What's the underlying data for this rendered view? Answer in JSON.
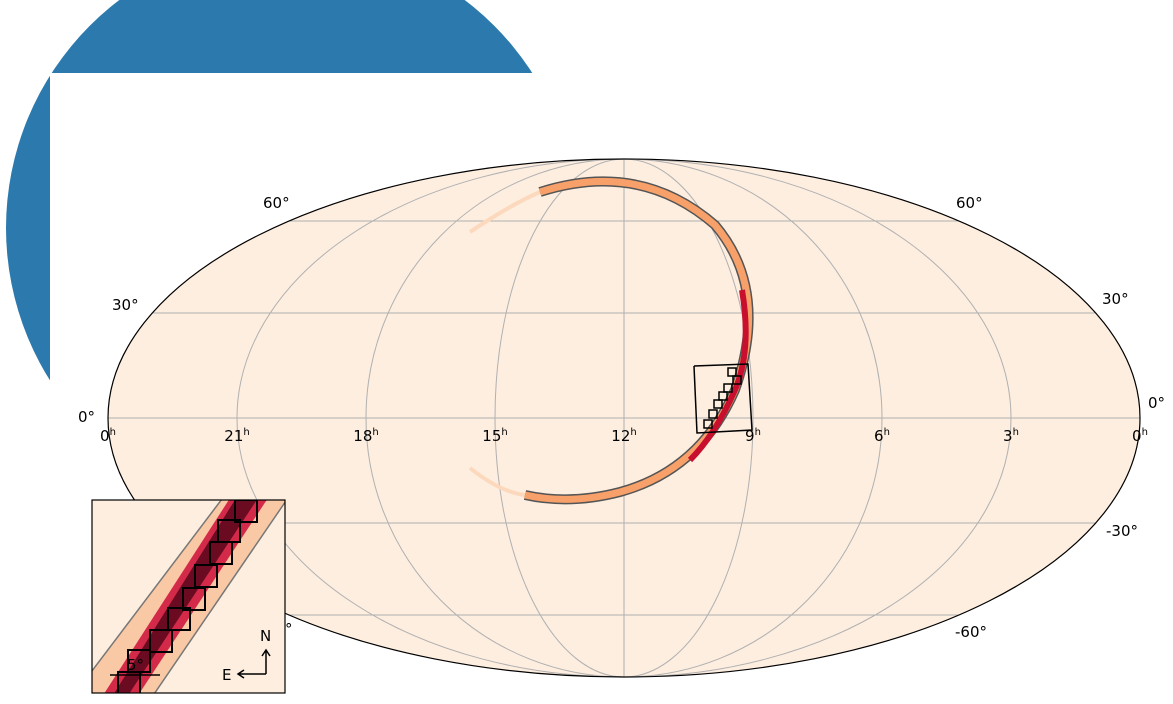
{
  "ra_labels": [
    "0",
    "21",
    "18",
    "15",
    "12",
    "9",
    "6",
    "3",
    "0"
  ],
  "ra_unit": "h",
  "dec_labels_left": [
    "60°",
    "30°",
    "0°"
  ],
  "dec_labels_right": [
    "60°",
    "30°",
    "0°",
    "-30°",
    "-60°"
  ],
  "inset_partial_label": "°",
  "inset": {
    "north": "N",
    "east": "E",
    "scale": "5°"
  }
}
